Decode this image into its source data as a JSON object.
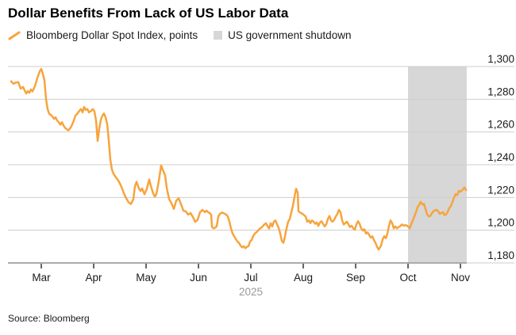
{
  "chart_data": {
    "type": "line",
    "title": "Dollar Benefits From Lack of US Labor Data",
    "source": "Source: Bloomberg",
    "x_axis": {
      "unit": "month of 2025 (3 = Mar 1 ... 11 = Nov 1)",
      "ticks": [
        3,
        4,
        5,
        6,
        7,
        8,
        9,
        10,
        11
      ],
      "tick_labels": [
        "Mar",
        "Apr",
        "May",
        "Jun",
        "Jul",
        "Aug",
        "Sep",
        "Oct",
        "Nov"
      ],
      "year_label": "2025"
    },
    "y_axis": {
      "range": [
        1180,
        1300
      ],
      "ticks": [
        1300,
        1280,
        1260,
        1240,
        1220,
        1200,
        1180
      ],
      "tick_labels": [
        "1,300",
        "1,280",
        "1,260",
        "1,240",
        "1,220",
        "1,200",
        "1,180"
      ]
    },
    "band": {
      "label": "US government shutdown",
      "color": "#D7D7D7",
      "x_start": 10.0,
      "x_end": 11.12
    },
    "grid": {
      "color": "#CDCDCD",
      "baseline_color": "#ABABAB",
      "tick_color": "#333333",
      "label_color": "#1a1a1a",
      "year_color": "#999999"
    },
    "series": [
      {
        "name": "Bloomberg Dollar Spot Index, points",
        "color": "#F7A43D",
        "points": [
          [
            2.424,
            1291
          ],
          [
            2.47,
            1289.5
          ],
          [
            2.515,
            1290.2
          ],
          [
            2.561,
            1290.5
          ],
          [
            2.606,
            1286.5
          ],
          [
            2.652,
            1287.5
          ],
          [
            2.682,
            1285.5
          ],
          [
            2.712,
            1283.5
          ],
          [
            2.742,
            1285.0
          ],
          [
            2.773,
            1284.0
          ],
          [
            2.803,
            1286.0
          ],
          [
            2.833,
            1284.8
          ],
          [
            2.879,
            1288.0
          ],
          [
            2.924,
            1293.0
          ],
          [
            2.97,
            1297.0
          ],
          [
            3.0,
            1298.5
          ],
          [
            3.03,
            1295.5
          ],
          [
            3.061,
            1291.5
          ],
          [
            3.091,
            1280.0
          ],
          [
            3.121,
            1274.0
          ],
          [
            3.152,
            1271.0
          ],
          [
            3.182,
            1270.5
          ],
          [
            3.212,
            1269.5
          ],
          [
            3.242,
            1268.0
          ],
          [
            3.273,
            1269.0
          ],
          [
            3.303,
            1267.0
          ],
          [
            3.333,
            1266.0
          ],
          [
            3.364,
            1264.5
          ],
          [
            3.394,
            1266.0
          ],
          [
            3.424,
            1264.0
          ],
          [
            3.455,
            1262.5
          ],
          [
            3.515,
            1261.0
          ],
          [
            3.545,
            1262.0
          ],
          [
            3.576,
            1263.5
          ],
          [
            3.621,
            1267.0
          ],
          [
            3.652,
            1270.0
          ],
          [
            3.697,
            1271.5
          ],
          [
            3.727,
            1273.0
          ],
          [
            3.758,
            1274.0
          ],
          [
            3.788,
            1272.0
          ],
          [
            3.818,
            1275.3
          ],
          [
            3.848,
            1273.5
          ],
          [
            3.879,
            1274.0
          ],
          [
            3.909,
            1272.0
          ],
          [
            3.955,
            1273.0
          ],
          [
            3.985,
            1274.0
          ],
          [
            4.015,
            1272.5
          ],
          [
            4.045,
            1267.0
          ],
          [
            4.076,
            1254.5
          ],
          [
            4.106,
            1262.0
          ],
          [
            4.136,
            1267.5
          ],
          [
            4.167,
            1270.0
          ],
          [
            4.197,
            1271.3
          ],
          [
            4.227,
            1269.0
          ],
          [
            4.258,
            1265.0
          ],
          [
            4.288,
            1255.0
          ],
          [
            4.318,
            1243.0
          ],
          [
            4.348,
            1237.0
          ],
          [
            4.379,
            1234.5
          ],
          [
            4.409,
            1233.0
          ],
          [
            4.455,
            1231.0
          ],
          [
            4.485,
            1229.5
          ],
          [
            4.53,
            1226.5
          ],
          [
            4.576,
            1222.5
          ],
          [
            4.621,
            1219.5
          ],
          [
            4.667,
            1217.0
          ],
          [
            4.712,
            1216.0
          ],
          [
            4.758,
            1219.0
          ],
          [
            4.788,
            1227.0
          ],
          [
            4.818,
            1229.5
          ],
          [
            4.864,
            1225.5
          ],
          [
            4.894,
            1224.0
          ],
          [
            4.924,
            1225.5
          ],
          [
            4.97,
            1222.0
          ],
          [
            5.015,
            1225.3
          ],
          [
            5.061,
            1231.0
          ],
          [
            5.091,
            1227.0
          ],
          [
            5.136,
            1222.5
          ],
          [
            5.167,
            1220.5
          ],
          [
            5.197,
            1222.0
          ],
          [
            5.242,
            1230.0
          ],
          [
            5.288,
            1239.5
          ],
          [
            5.318,
            1237.0
          ],
          [
            5.364,
            1233.5
          ],
          [
            5.394,
            1226.0
          ],
          [
            5.439,
            1219.0
          ],
          [
            5.485,
            1216.5
          ],
          [
            5.53,
            1213.0
          ],
          [
            5.576,
            1218.0
          ],
          [
            5.621,
            1219.5
          ],
          [
            5.667,
            1216.0
          ],
          [
            5.712,
            1212.0
          ],
          [
            5.758,
            1211.5
          ],
          [
            5.803,
            1209.5
          ],
          [
            5.848,
            1210.5
          ],
          [
            5.894,
            1208.0
          ],
          [
            5.939,
            1205.0
          ],
          [
            5.985,
            1206.5
          ],
          [
            6.03,
            1211.0
          ],
          [
            6.076,
            1212.4
          ],
          [
            6.121,
            1211.0
          ],
          [
            6.152,
            1212.0
          ],
          [
            6.182,
            1211.0
          ],
          [
            6.212,
            1210.5
          ],
          [
            6.242,
            1209.5
          ],
          [
            6.258,
            1202.0
          ],
          [
            6.288,
            1201.1
          ],
          [
            6.318,
            1201.5
          ],
          [
            6.348,
            1202.4
          ],
          [
            6.379,
            1208.4
          ],
          [
            6.409,
            1210.0
          ],
          [
            6.455,
            1210.8
          ],
          [
            6.5,
            1210.0
          ],
          [
            6.53,
            1209.5
          ],
          [
            6.561,
            1208.4
          ],
          [
            6.591,
            1205.2
          ],
          [
            6.621,
            1201.1
          ],
          [
            6.652,
            1197.9
          ],
          [
            6.682,
            1196.3
          ],
          [
            6.712,
            1194.7
          ],
          [
            6.742,
            1193.1
          ],
          [
            6.773,
            1192.3
          ],
          [
            6.803,
            1190.6
          ],
          [
            6.833,
            1189.5
          ],
          [
            6.864,
            1190.2
          ],
          [
            6.894,
            1189.0
          ],
          [
            6.924,
            1189.8
          ],
          [
            6.955,
            1190.2
          ],
          [
            6.985,
            1193.1
          ],
          [
            7.015,
            1194.0
          ],
          [
            7.045,
            1196.5
          ],
          [
            7.076,
            1197.9
          ],
          [
            7.121,
            1199.2
          ],
          [
            7.167,
            1200.8
          ],
          [
            7.212,
            1201.9
          ],
          [
            7.258,
            1203.5
          ],
          [
            7.288,
            1204.3
          ],
          [
            7.318,
            1202.5
          ],
          [
            7.348,
            1201.0
          ],
          [
            7.379,
            1204.3
          ],
          [
            7.409,
            1202.3
          ],
          [
            7.439,
            1205.2
          ],
          [
            7.47,
            1206.0
          ],
          [
            7.5,
            1203.5
          ],
          [
            7.53,
            1201.5
          ],
          [
            7.561,
            1197.9
          ],
          [
            7.591,
            1193.5
          ],
          [
            7.621,
            1192.3
          ],
          [
            7.652,
            1196.3
          ],
          [
            7.682,
            1201.1
          ],
          [
            7.712,
            1205.2
          ],
          [
            7.742,
            1206.8
          ],
          [
            7.773,
            1210.8
          ],
          [
            7.803,
            1215.0
          ],
          [
            7.833,
            1220.5
          ],
          [
            7.864,
            1225.3
          ],
          [
            7.894,
            1222.9
          ],
          [
            7.909,
            1211.6
          ],
          [
            7.939,
            1210.8
          ],
          [
            7.985,
            1210.0
          ],
          [
            8.015,
            1209.2
          ],
          [
            8.045,
            1208.4
          ],
          [
            8.076,
            1205.2
          ],
          [
            8.106,
            1206.0
          ],
          [
            8.136,
            1204.3
          ],
          [
            8.167,
            1206.0
          ],
          [
            8.197,
            1205.2
          ],
          [
            8.227,
            1203.9
          ],
          [
            8.258,
            1204.7
          ],
          [
            8.288,
            1202.7
          ],
          [
            8.318,
            1204.7
          ],
          [
            8.348,
            1205.5
          ],
          [
            8.379,
            1203.9
          ],
          [
            8.409,
            1202.3
          ],
          [
            8.439,
            1203.5
          ],
          [
            8.47,
            1206.8
          ],
          [
            8.5,
            1208.7
          ],
          [
            8.53,
            1206.0
          ],
          [
            8.561,
            1205.2
          ],
          [
            8.591,
            1206.4
          ],
          [
            8.621,
            1208.4
          ],
          [
            8.652,
            1210.0
          ],
          [
            8.682,
            1212.4
          ],
          [
            8.712,
            1210.8
          ],
          [
            8.742,
            1206.0
          ],
          [
            8.773,
            1203.5
          ],
          [
            8.803,
            1204.3
          ],
          [
            8.833,
            1205.2
          ],
          [
            8.864,
            1203.5
          ],
          [
            8.894,
            1201.9
          ],
          [
            8.924,
            1202.7
          ],
          [
            8.955,
            1201.1
          ],
          [
            8.985,
            1200.3
          ],
          [
            9.015,
            1203.5
          ],
          [
            9.045,
            1205.5
          ],
          [
            9.076,
            1203.9
          ],
          [
            9.106,
            1201.1
          ],
          [
            9.136,
            1199.8
          ],
          [
            9.167,
            1200.6
          ],
          [
            9.197,
            1197.9
          ],
          [
            9.227,
            1198.7
          ],
          [
            9.258,
            1197.1
          ],
          [
            9.288,
            1195.5
          ],
          [
            9.318,
            1196.3
          ],
          [
            9.348,
            1194.0
          ],
          [
            9.379,
            1192.3
          ],
          [
            9.409,
            1189.8
          ],
          [
            9.439,
            1188.2
          ],
          [
            9.485,
            1190.6
          ],
          [
            9.515,
            1194.3
          ],
          [
            9.545,
            1196.3
          ],
          [
            9.576,
            1195.1
          ],
          [
            9.606,
            1197.9
          ],
          [
            9.636,
            1202.7
          ],
          [
            9.667,
            1206.0
          ],
          [
            9.697,
            1204.3
          ],
          [
            9.727,
            1201.1
          ],
          [
            9.758,
            1202.3
          ],
          [
            9.788,
            1201.1
          ],
          [
            9.818,
            1201.9
          ],
          [
            9.848,
            1202.3
          ],
          [
            9.879,
            1203.5
          ],
          [
            9.924,
            1202.7
          ],
          [
            9.955,
            1203.2
          ],
          [
            10.0,
            1202.3
          ],
          [
            10.03,
            1201.1
          ],
          [
            10.061,
            1203.5
          ],
          [
            10.091,
            1206.0
          ],
          [
            10.121,
            1208.4
          ],
          [
            10.152,
            1211.0
          ],
          [
            10.182,
            1214.0
          ],
          [
            10.212,
            1215.5
          ],
          [
            10.242,
            1217.3
          ],
          [
            10.273,
            1215.7
          ],
          [
            10.303,
            1216.1
          ],
          [
            10.333,
            1213.0
          ],
          [
            10.364,
            1209.8
          ],
          [
            10.394,
            1208.4
          ],
          [
            10.424,
            1208.7
          ],
          [
            10.455,
            1210.3
          ],
          [
            10.485,
            1211.6
          ],
          [
            10.515,
            1212.2
          ],
          [
            10.545,
            1212.4
          ],
          [
            10.576,
            1211.6
          ],
          [
            10.606,
            1210.0
          ],
          [
            10.636,
            1210.5
          ],
          [
            10.667,
            1211.0
          ],
          [
            10.697,
            1209.2
          ],
          [
            10.727,
            1209.7
          ],
          [
            10.758,
            1211.3
          ],
          [
            10.788,
            1213.6
          ],
          [
            10.818,
            1214.8
          ],
          [
            10.848,
            1217.3
          ],
          [
            10.879,
            1220.0
          ],
          [
            10.909,
            1222.1
          ],
          [
            10.939,
            1221.4
          ],
          [
            10.97,
            1224.0
          ],
          [
            11.0,
            1223.5
          ],
          [
            11.03,
            1224.3
          ],
          [
            11.076,
            1226.1
          ],
          [
            11.106,
            1224.5
          ]
        ]
      }
    ]
  }
}
